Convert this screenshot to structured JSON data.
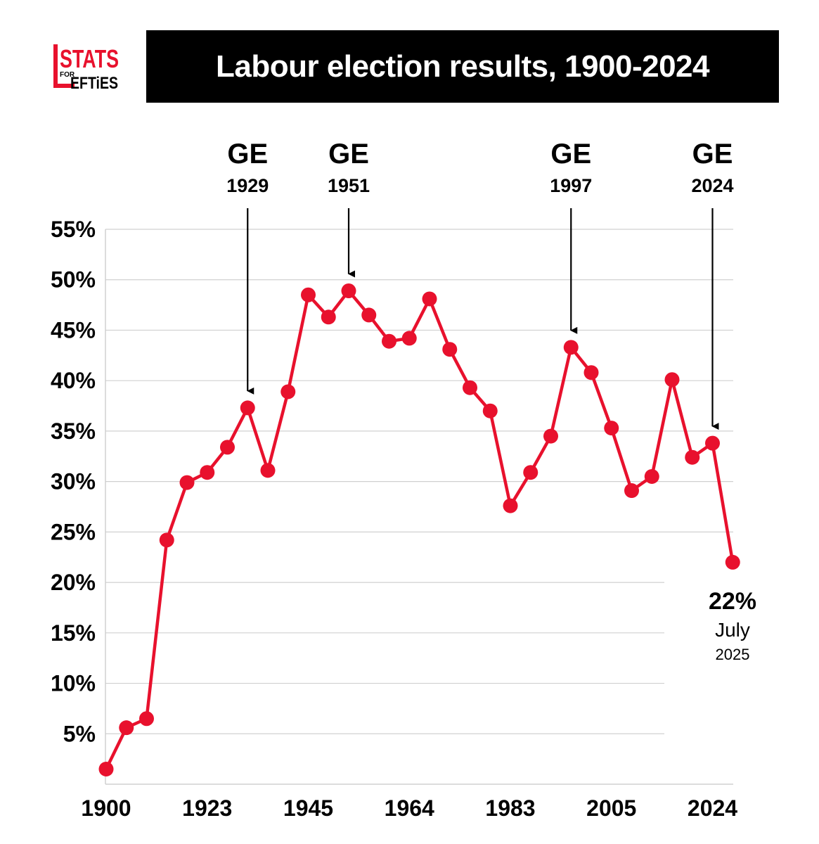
{
  "header": {
    "title": "Labour election results, 1900-2024",
    "logo_top": "STATS",
    "logo_small": "FOR",
    "logo_bottom": "EFTiES"
  },
  "colors": {
    "line": "#e8112d",
    "grid": "#d0d0d0",
    "axis": "#000000",
    "title_bg": "#000000",
    "title_text": "#ffffff"
  },
  "chart_data": {
    "type": "line",
    "title": "Labour election results, 1900-2024",
    "xlabel": "",
    "ylabel": "",
    "grid": true,
    "ylim": [
      0,
      55
    ],
    "y_ticks": [
      5,
      10,
      15,
      20,
      25,
      30,
      35,
      40,
      45,
      50,
      55
    ],
    "y_tick_labels": [
      "5%",
      "10%",
      "15%",
      "20%",
      "25%",
      "30%",
      "35%",
      "40%",
      "45%",
      "50%",
      "55%"
    ],
    "x_tick_labels": [
      "1900",
      "1923",
      "1945",
      "1964",
      "1983",
      "2005",
      "2024"
    ],
    "x_tick_indices": [
      0,
      5,
      10,
      15,
      20,
      25,
      30
    ],
    "series": [
      {
        "values": [
          1.5,
          5.6,
          6.5,
          24.2,
          29.9,
          30.9,
          33.4,
          37.3,
          31.1,
          38.9,
          48.5,
          46.3,
          48.9,
          46.5,
          43.9,
          44.2,
          48.1,
          43.1,
          39.3,
          37.0,
          27.6,
          30.9,
          34.5,
          43.3,
          40.8,
          35.3,
          29.1,
          30.5,
          40.1,
          32.4,
          33.8,
          22.0
        ]
      }
    ],
    "annotations": [
      {
        "label": "GE",
        "year": "1929",
        "index": 7
      },
      {
        "label": "GE",
        "year": "1951",
        "index": 12
      },
      {
        "label": "GE",
        "year": "1997",
        "index": 23
      },
      {
        "label": "GE",
        "year": "2024",
        "index": 30
      }
    ],
    "final_label": {
      "value": "22%",
      "month": "July",
      "year": "2025"
    }
  }
}
